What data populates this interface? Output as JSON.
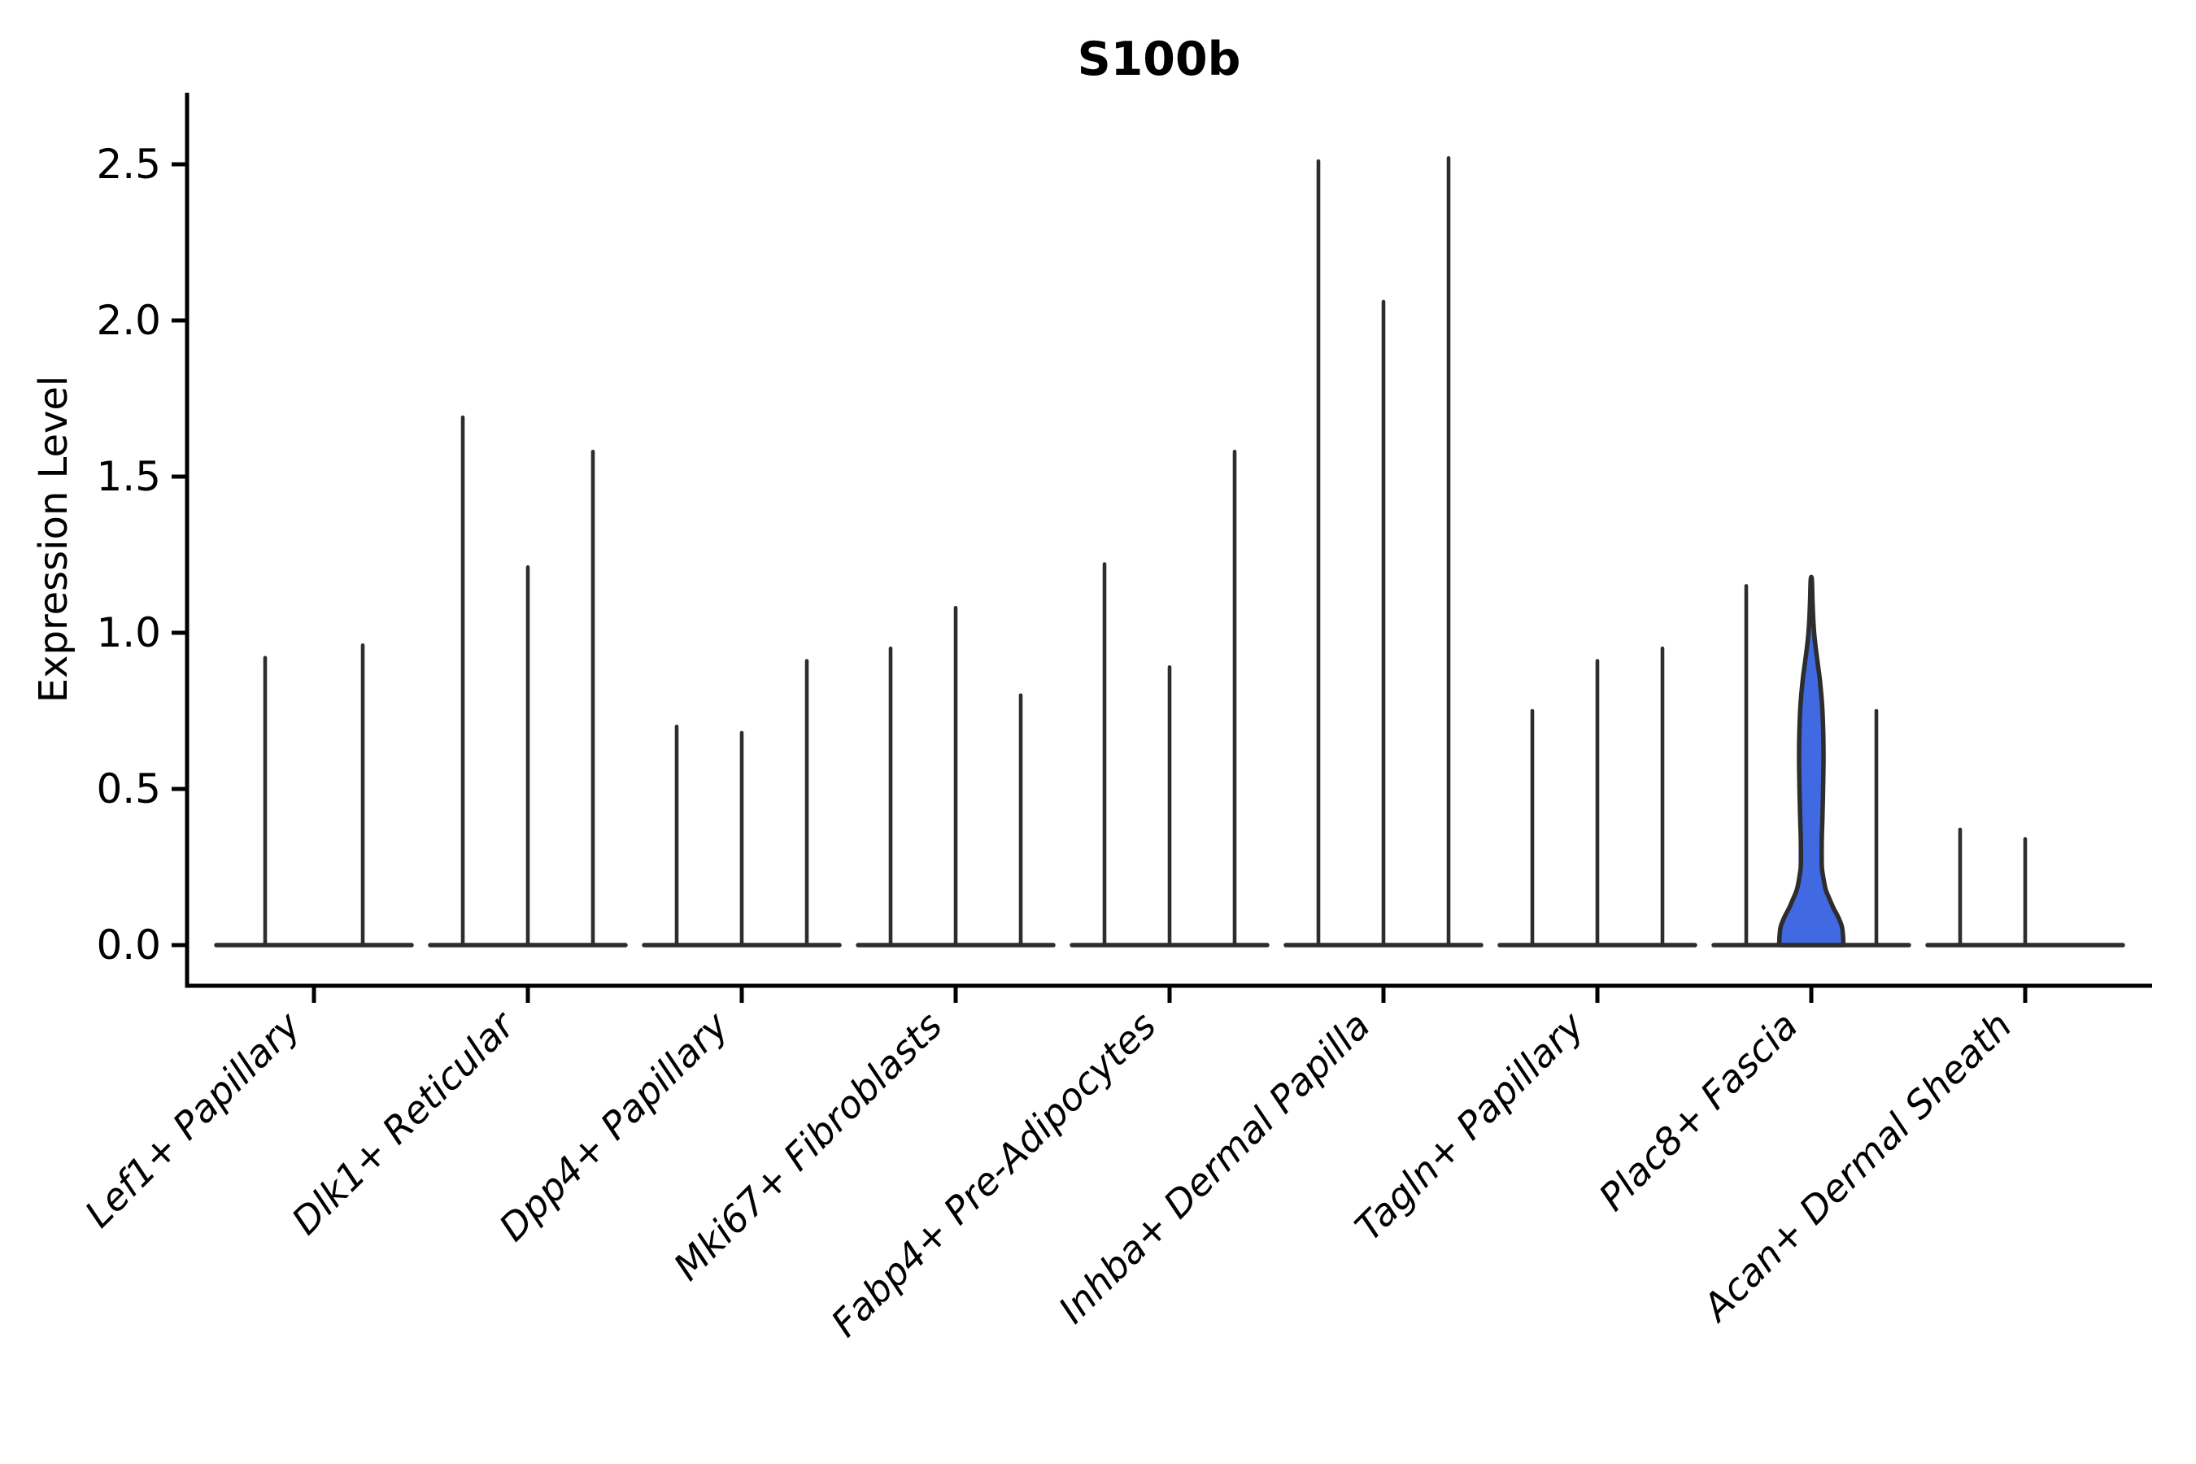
{
  "figure": {
    "background": "#ffffff"
  },
  "chart_data": {
    "type": "violin",
    "title": "S100b",
    "ylabel": "Expression Level",
    "xlabel": "",
    "yticks": [
      0.0,
      0.5,
      1.0,
      1.5,
      2.0,
      2.5
    ],
    "ylim": [
      -0.13,
      2.73
    ],
    "grid": false,
    "legend": false,
    "categories": [
      "Lef1+ Papillary",
      "Dlk1+ Reticular",
      "Dpp4+ Papillary",
      "Mki67+ Fibroblasts",
      "Fabp4+ Pre-Adipocytes",
      "Inhba+ Dermal Papilla",
      "Tagln+ Papillary",
      "Plac8+ Fascia",
      "Acan+ Dermal Sheath"
    ],
    "groups": [
      {
        "label": "Lef1+ Papillary",
        "violin_maxima": [
          0.92,
          0.96
        ],
        "highlighted_index": -1
      },
      {
        "label": "Dlk1+ Reticular",
        "violin_maxima": [
          1.69,
          1.21,
          1.58
        ],
        "highlighted_index": -1
      },
      {
        "label": "Dpp4+ Papillary",
        "violin_maxima": [
          0.7,
          0.68,
          0.91
        ],
        "highlighted_index": -1
      },
      {
        "label": "Mki67+ Fibroblasts",
        "violin_maxima": [
          0.95,
          1.08,
          0.8
        ],
        "highlighted_index": -1
      },
      {
        "label": "Fabp4+ Pre-Adipocytes",
        "violin_maxima": [
          1.22,
          0.89,
          1.58
        ],
        "highlighted_index": -1
      },
      {
        "label": "Inhba+ Dermal Papilla",
        "violin_maxima": [
          2.51,
          2.06,
          2.52
        ],
        "highlighted_index": -1
      },
      {
        "label": "Tagln+ Papillary",
        "violin_maxima": [
          0.75,
          0.91,
          0.95
        ],
        "highlighted_index": -1
      },
      {
        "label": "Plac8+ Fascia",
        "violin_maxima": [
          1.15,
          1.17,
          0.75
        ],
        "highlighted_index": 1
      },
      {
        "label": "Acan+ Dermal Sheath",
        "violin_maxima": [
          0.37,
          0.34,
          0.0
        ],
        "highlighted_index": -1
      }
    ],
    "highlight_violin": {
      "category": "Plac8+ Fascia",
      "max": 1.17,
      "fill_color": "#4169E1",
      "profile": [
        [
          0.0,
          39.5
        ],
        [
          0.03,
          39.0
        ],
        [
          0.06,
          37.5
        ],
        [
          0.09,
          33.0
        ],
        [
          0.12,
          27.0
        ],
        [
          0.15,
          22.0
        ],
        [
          0.18,
          17.5
        ],
        [
          0.22,
          14.5
        ],
        [
          0.25,
          13.0
        ],
        [
          0.3,
          12.8
        ],
        [
          0.35,
          13.0
        ],
        [
          0.42,
          13.8
        ],
        [
          0.5,
          14.5
        ],
        [
          0.58,
          15.0
        ],
        [
          0.65,
          14.9
        ],
        [
          0.72,
          14.2
        ],
        [
          0.78,
          13.0
        ],
        [
          0.85,
          10.5
        ],
        [
          0.9,
          8.0
        ],
        [
          0.95,
          5.5
        ],
        [
          1.0,
          3.5
        ],
        [
          1.05,
          2.3
        ],
        [
          1.1,
          1.5
        ],
        [
          1.17,
          0.7
        ]
      ]
    },
    "colors": {
      "violin_stroke": "#2d2d2d",
      "axis": "#000000",
      "highlight_fill": "#4169E1"
    }
  }
}
